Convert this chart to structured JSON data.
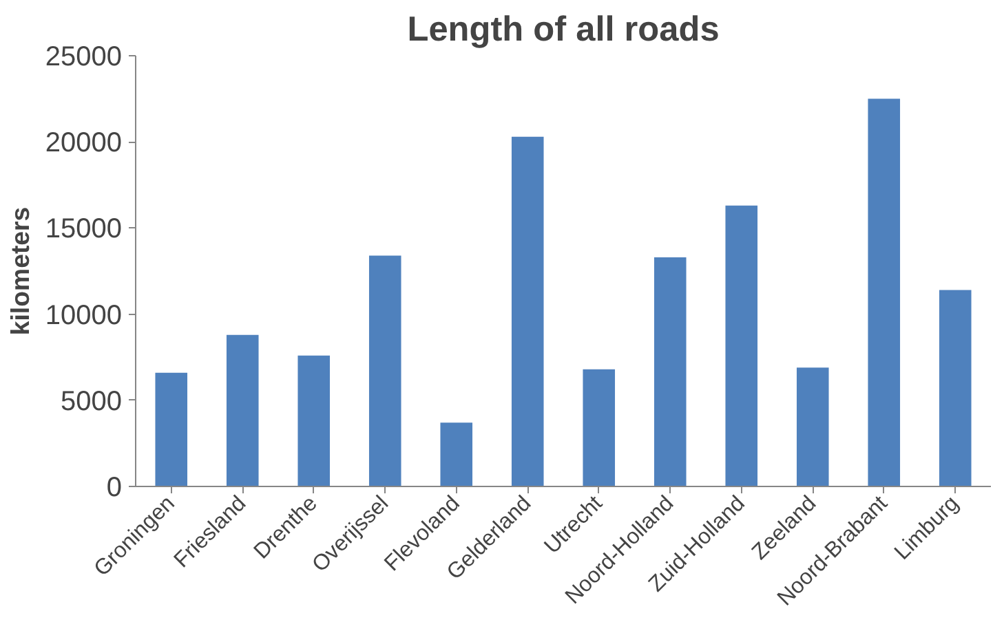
{
  "chart_data": {
    "type": "bar",
    "title": "Length of all roads",
    "ylabel": "kilometers",
    "categories": [
      "Groningen",
      "Friesland",
      "Drenthe",
      "Overijssel",
      "Flevoland",
      "Gelderland",
      "Utrecht",
      "Noord-Holland",
      "Zuid-Holland",
      "Zeeland",
      "Noord-Brabant",
      "Limburg"
    ],
    "values": [
      6600,
      8800,
      7600,
      13400,
      3700,
      20300,
      6800,
      13300,
      16300,
      6900,
      22500,
      11400
    ],
    "color": "#4f81bd",
    "ylim": [
      0,
      25000
    ],
    "yticks": [
      0,
      5000,
      10000,
      15000,
      20000,
      25000
    ],
    "grid": false
  }
}
